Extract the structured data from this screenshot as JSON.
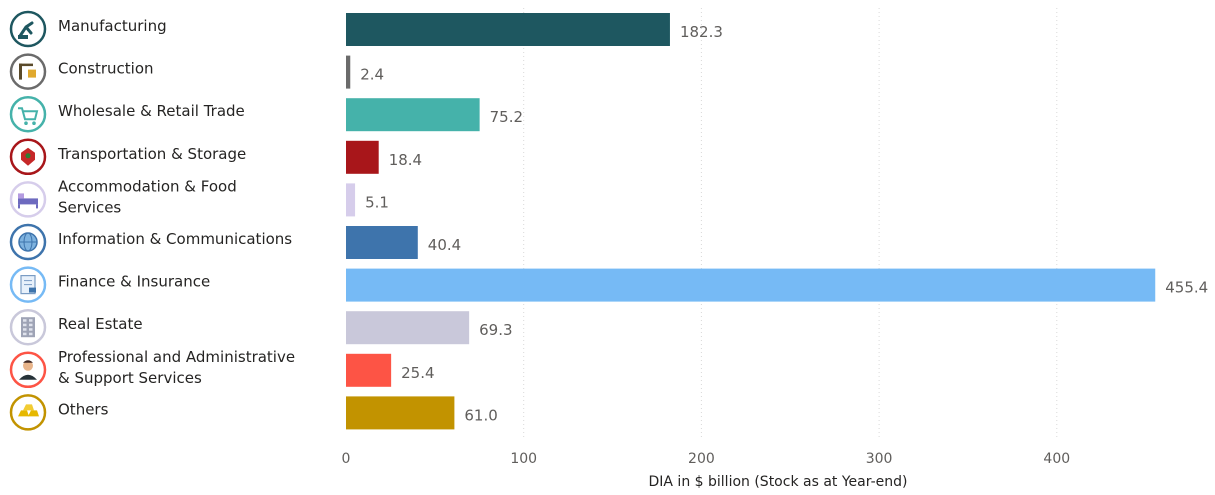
{
  "chart_data": {
    "type": "bar",
    "orientation": "horizontal",
    "categories": [
      "Manufacturing",
      "Construction",
      "Wholesale & Retail Trade",
      "Transportation & Storage",
      "Accommodation & Food Services",
      "Information & Communications",
      "Finance & Insurance",
      "Real Estate",
      "Professional and Administrative & Support Services",
      "Others"
    ],
    "category_label_lines": [
      [
        "Manufacturing"
      ],
      [
        "Construction"
      ],
      [
        "Wholesale & Retail Trade"
      ],
      [
        "Transportation & Storage"
      ],
      [
        "Accommodation & Food",
        "Services"
      ],
      [
        "Information & Communications"
      ],
      [
        "Finance & Insurance"
      ],
      [
        "Real Estate"
      ],
      [
        "Professional and Administrative",
        "& Support Services"
      ],
      [
        "Others"
      ]
    ],
    "values": [
      182.3,
      2.4,
      75.2,
      18.4,
      5.1,
      40.4,
      455.4,
      69.3,
      25.4,
      61.0
    ],
    "value_labels": [
      "182.3",
      "2.4",
      "75.2",
      "18.4",
      "5.1",
      "40.4",
      "455.4",
      "69.3",
      "25.4",
      "61.0"
    ],
    "colors": [
      "#1e5760",
      "#6b6b6b",
      "#45b2aa",
      "#a8161a",
      "#d6cdeb",
      "#3e74ac",
      "#76baf5",
      "#c9c8da",
      "#fd5445",
      "#c29300"
    ],
    "icons": [
      "robot-arm-icon",
      "construction-crane-icon",
      "shopping-cart-icon",
      "delivery-truck-icon",
      "bed-icon",
      "globe-network-icon",
      "document-money-icon",
      "building-icon",
      "businessperson-icon",
      "gold-bars-icon"
    ],
    "xlabel": "DIA in $ billion (Stock as at Year-end)",
    "ylabel": "",
    "xlim": [
      0,
      460
    ],
    "xticks": [
      0,
      100,
      200,
      300,
      400
    ],
    "grid": true
  }
}
